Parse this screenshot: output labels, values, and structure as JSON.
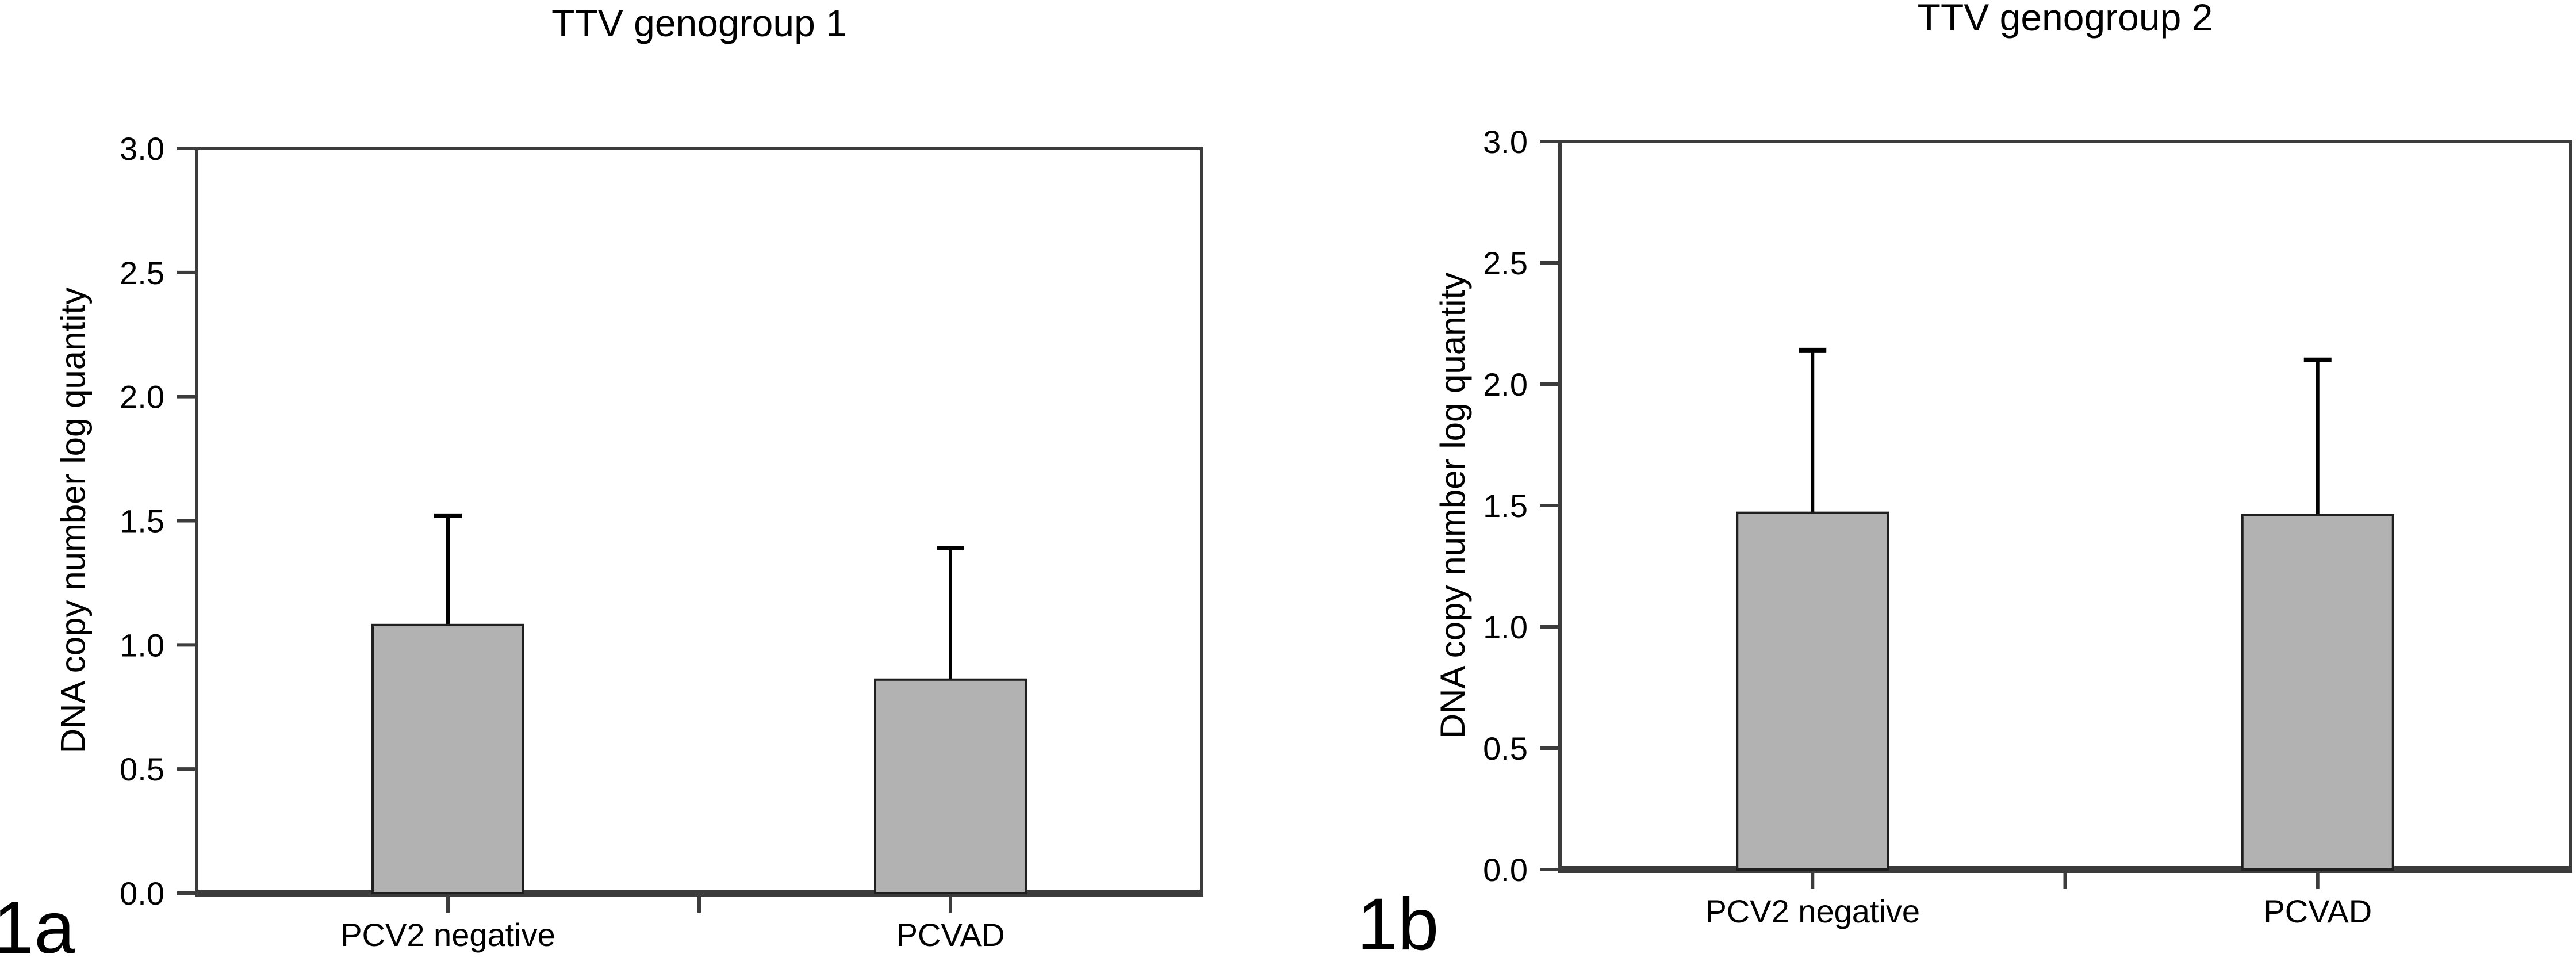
{
  "figure": {
    "background": "#ffffff",
    "panels": 2
  },
  "colors": {
    "bar_fill": "#b2b2b2",
    "bar_stroke": "#1f1f1f",
    "axis": "#3c3c3c",
    "text": "#000000"
  },
  "chart_data": [
    {
      "type": "bar",
      "title": "TTV genogroup 1",
      "panel_label": "1a",
      "ylabel": "DNA copy number log quantity",
      "xlabel": "",
      "categories": [
        "PCV2 negative",
        "PCVAD"
      ],
      "values": [
        1.08,
        0.86
      ],
      "error_up": [
        0.44,
        0.53
      ],
      "error_tops": [
        1.52,
        1.39
      ],
      "ylim": [
        0,
        3
      ],
      "yticks": [
        0,
        0.5,
        1,
        1.5,
        2,
        2.5,
        3
      ],
      "ytick_labels": [
        "0.0",
        "0.5",
        "1.0",
        "1.5",
        "2.0",
        "2.5",
        "3.0"
      ],
      "grid": false,
      "legend": "none"
    },
    {
      "type": "bar",
      "title": "TTV genogroup 2",
      "panel_label": "1b",
      "ylabel": "DNA copy number log quantity",
      "xlabel": "",
      "categories": [
        "PCV2 negative",
        "PCVAD"
      ],
      "values": [
        1.47,
        1.46
      ],
      "error_up": [
        0.67,
        0.64
      ],
      "error_tops": [
        2.14,
        2.1
      ],
      "ylim": [
        0,
        3
      ],
      "yticks": [
        0,
        0.5,
        1,
        1.5,
        2,
        2.5,
        3
      ],
      "ytick_labels": [
        "0.0",
        "0.5",
        "1.0",
        "1.5",
        "2.0",
        "2.5",
        "3.0"
      ],
      "grid": false,
      "legend": "none"
    }
  ]
}
